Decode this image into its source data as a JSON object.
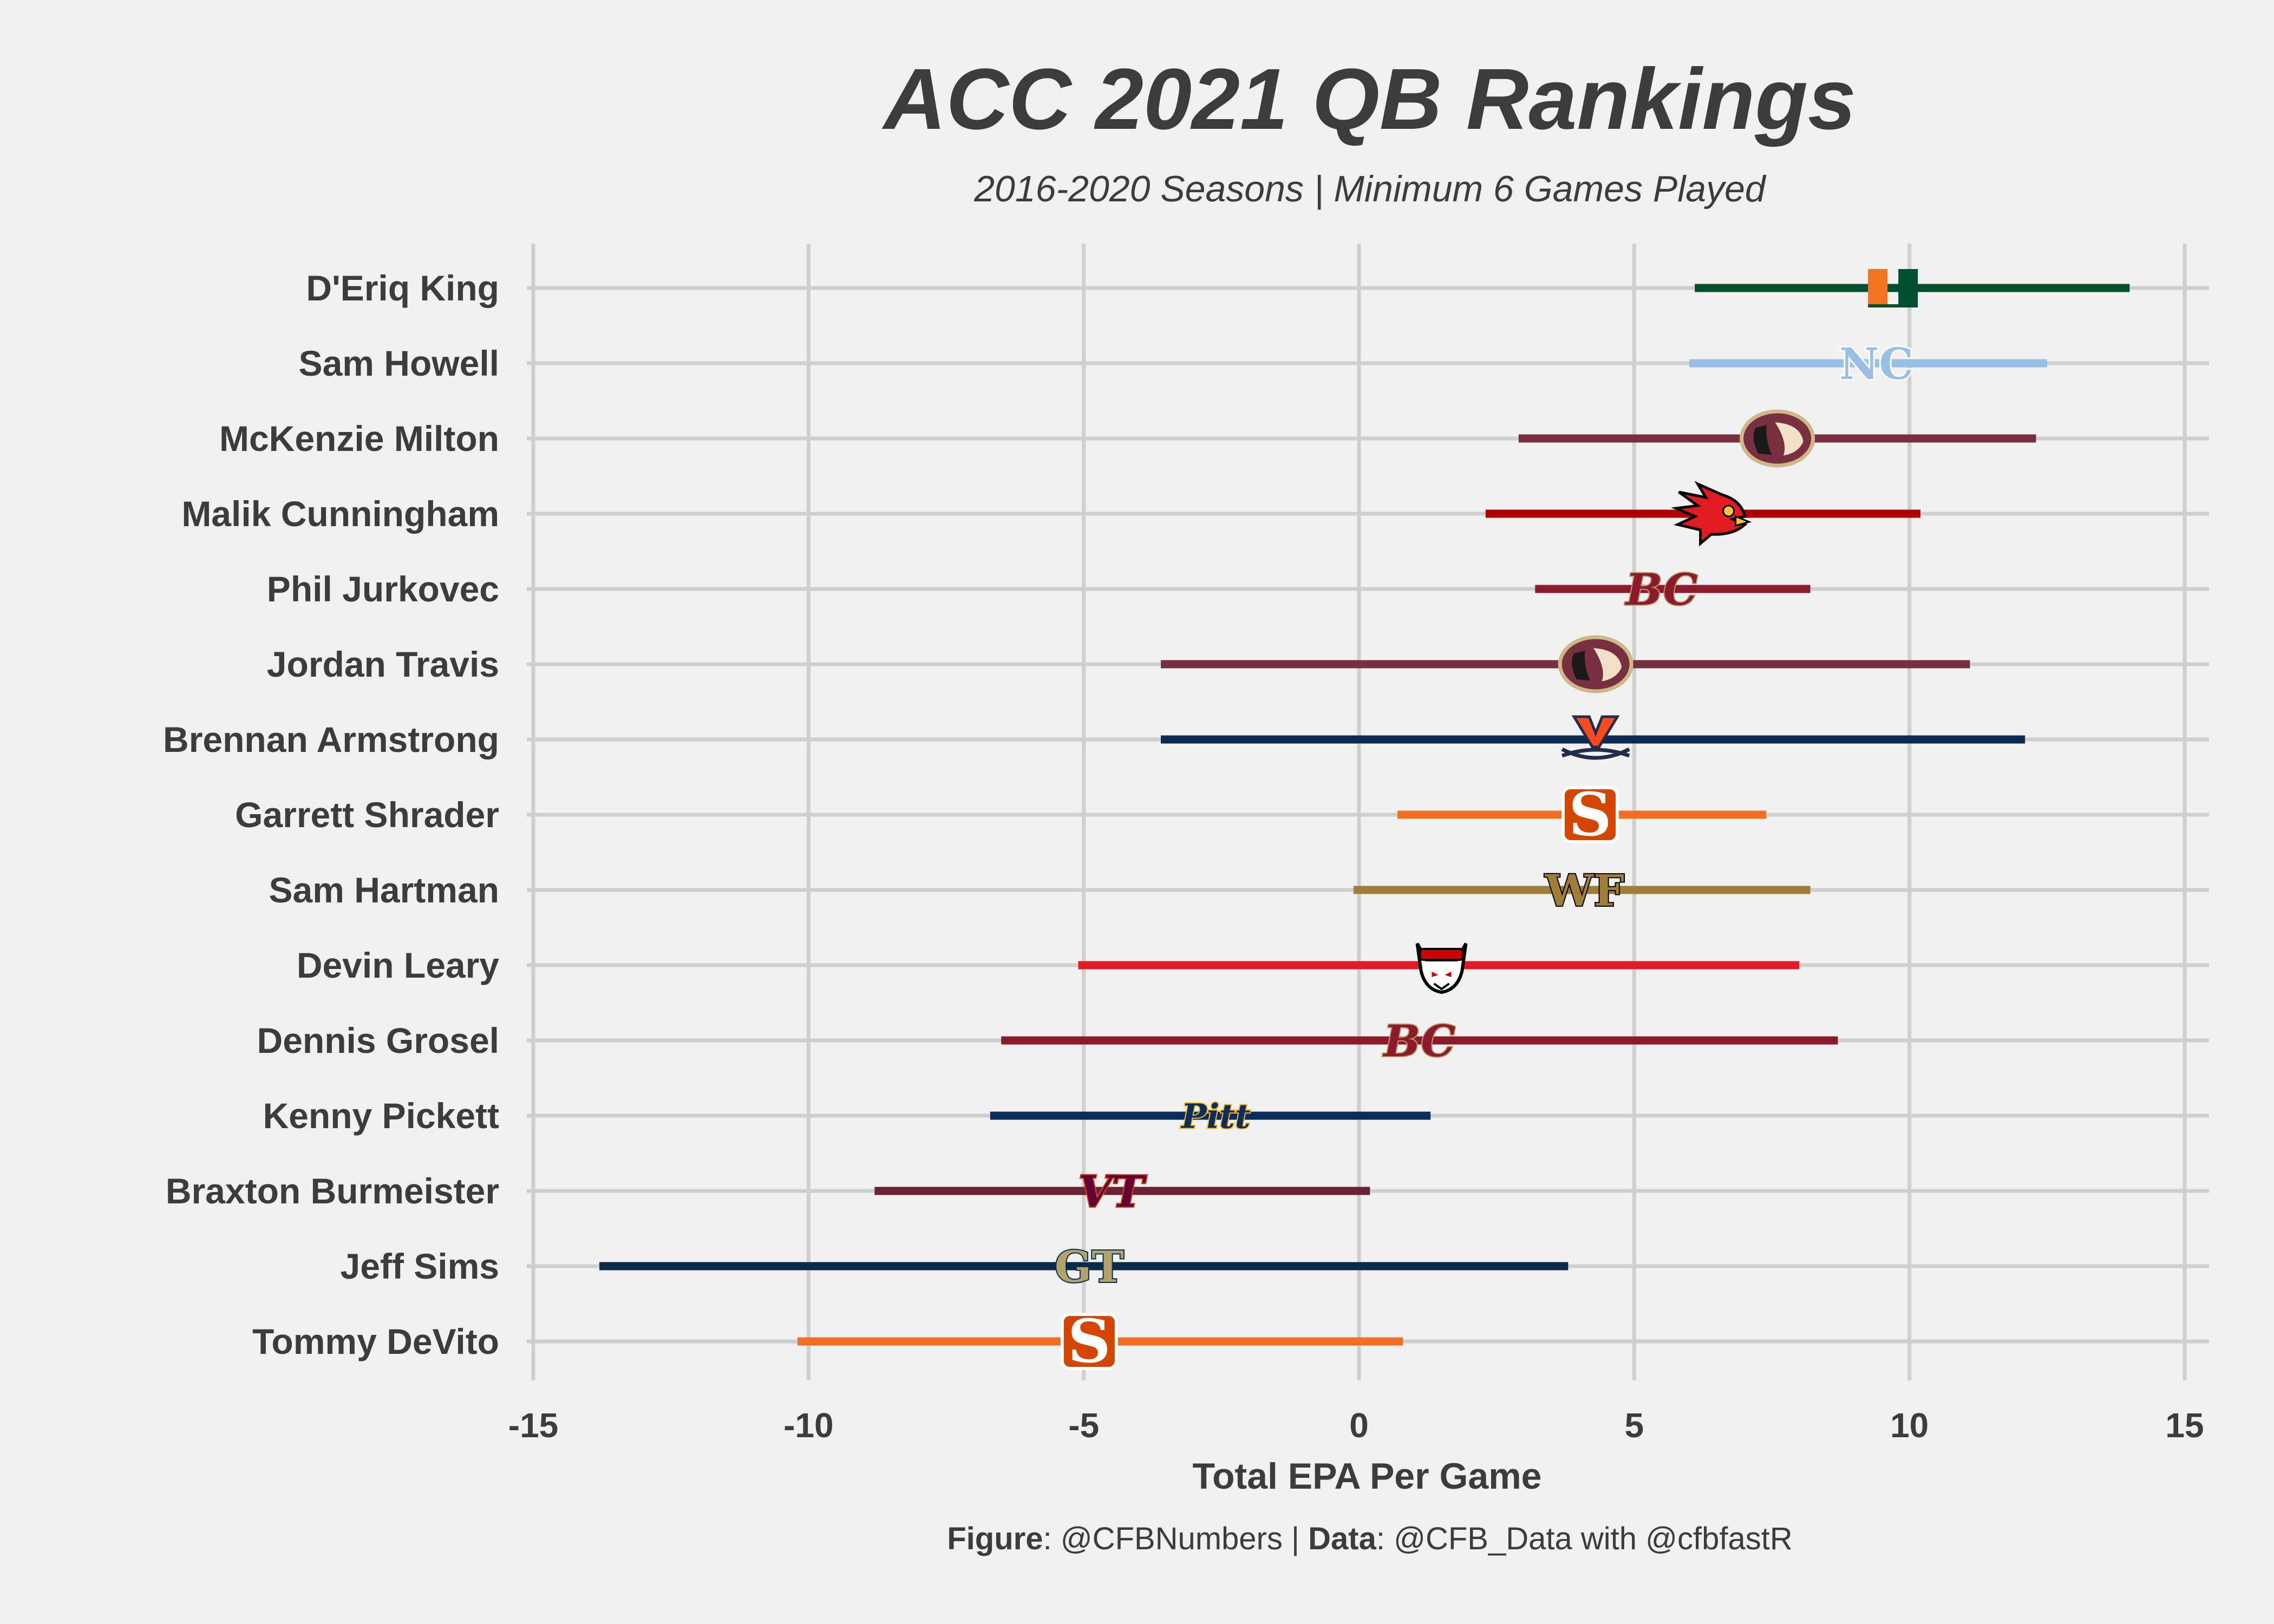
{
  "chart_data": {
    "type": "range",
    "title": "ACC 2021 QB Rankings",
    "subtitle": "2016-2020 Seasons | Minimum 6 Games Played",
    "xlabel": "Total EPA Per Game",
    "ylabel": "",
    "xlim": [
      -15,
      15
    ],
    "xticks": [
      -15,
      -10,
      -5,
      0,
      5,
      10,
      15
    ],
    "grid": true,
    "legend": "none",
    "caption": {
      "figure_label": "Figure",
      "figure_value": ": @CFBNumbers | ",
      "data_label": "Data",
      "data_value": ": @CFB_Data with @cfbfastR"
    },
    "players": [
      {
        "name": "D'Eriq King",
        "team": "Miami",
        "min": 6.1,
        "max": 14.0,
        "mean": 9.7,
        "color": "#005030",
        "logo": "miami-u-logo",
        "logo_text": "U",
        "logo_fill": "#f47321",
        "logo_stroke": "#005030"
      },
      {
        "name": "Sam Howell",
        "team": "North Carolina",
        "min": 6.0,
        "max": 12.5,
        "mean": 9.4,
        "color": "#99bfe5",
        "logo": "unc-nc-logo",
        "logo_text": "NC",
        "logo_fill": "#99bfe5",
        "logo_stroke": "#ffffff"
      },
      {
        "name": "McKenzie Milton",
        "team": "Florida State",
        "min": 2.9,
        "max": 12.3,
        "mean": 7.6,
        "color": "#782f40",
        "logo": "fsu-seminole-logo",
        "logo_text": "",
        "logo_fill": "#782f40",
        "logo_stroke": "#ceb888"
      },
      {
        "name": "Malik Cunningham",
        "team": "Louisville",
        "min": 2.3,
        "max": 10.2,
        "mean": 6.4,
        "color": "#ad0000",
        "logo": "louisville-cardinal-logo",
        "logo_text": "",
        "logo_fill": "#e21b23",
        "logo_stroke": "#000000"
      },
      {
        "name": "Phil Jurkovec",
        "team": "Boston College",
        "min": 3.2,
        "max": 8.2,
        "mean": 5.5,
        "color": "#8b1a2b",
        "logo": "bc-logo",
        "logo_text": "BC",
        "logo_fill": "#8b1a2b",
        "logo_stroke": "#bc9b6a"
      },
      {
        "name": "Jordan Travis",
        "team": "Florida State",
        "min": -3.6,
        "max": 11.1,
        "mean": 4.3,
        "color": "#782f40",
        "logo": "fsu-seminole-logo",
        "logo_text": "",
        "logo_fill": "#782f40",
        "logo_stroke": "#ceb888"
      },
      {
        "name": "Brennan Armstrong",
        "team": "Virginia",
        "min": -3.6,
        "max": 12.1,
        "mean": 4.3,
        "color": "#0d2b52",
        "logo": "virginia-v-sabres-logo",
        "logo_text": "V",
        "logo_fill": "#f84c1e",
        "logo_stroke": "#232d4b"
      },
      {
        "name": "Garrett Shrader",
        "team": "Syracuse",
        "min": 0.7,
        "max": 7.4,
        "mean": 4.2,
        "color": "#f26e21",
        "logo": "syracuse-s-logo",
        "logo_text": "S",
        "logo_fill": "#d44500",
        "logo_stroke": "#ffffff"
      },
      {
        "name": "Sam Hartman",
        "team": "Wake Forest",
        "min": -0.1,
        "max": 8.2,
        "mean": 4.1,
        "color": "#9e7e38",
        "logo": "wake-forest-wf-logo",
        "logo_text": "WF",
        "logo_fill": "#9e7e38",
        "logo_stroke": "#000000"
      },
      {
        "name": "Devin Leary",
        "team": "NC State",
        "min": -5.1,
        "max": 8.0,
        "mean": 1.5,
        "color": "#e01b25",
        "logo": "nc-state-wolf-logo",
        "logo_text": "",
        "logo_fill": "#cc0000",
        "logo_stroke": "#000000"
      },
      {
        "name": "Dennis Grosel",
        "team": "Boston College",
        "min": -6.5,
        "max": 8.7,
        "mean": 1.1,
        "color": "#8b1a2b",
        "logo": "bc-logo",
        "logo_text": "BC",
        "logo_fill": "#8b1a2b",
        "logo_stroke": "#bc9b6a"
      },
      {
        "name": "Kenny Pickett",
        "team": "Pittsburgh",
        "min": -6.7,
        "max": 1.3,
        "mean": -2.6,
        "color": "#0a2d5e",
        "logo": "pitt-script-logo",
        "logo_text": "Pitt",
        "logo_fill": "#0a2d5e",
        "logo_stroke": "#ffb81c"
      },
      {
        "name": "Braxton Burmeister",
        "team": "Virginia Tech",
        "min": -8.8,
        "max": 0.2,
        "mean": -4.5,
        "color": "#6a2234",
        "logo": "vt-logo",
        "logo_text": "VT",
        "logo_fill": "#630031",
        "logo_stroke": "#cf4420"
      },
      {
        "name": "Jeff Sims",
        "team": "Georgia Tech",
        "min": -13.8,
        "max": 3.8,
        "mean": -4.9,
        "color": "#0b2a4a",
        "logo": "gt-logo",
        "logo_text": "GT",
        "logo_fill": "#b3a369",
        "logo_stroke": "#003057"
      },
      {
        "name": "Tommy DeVito",
        "team": "Syracuse",
        "min": -10.2,
        "max": 0.8,
        "mean": -4.9,
        "color": "#f26e21",
        "logo": "syracuse-s-logo",
        "logo_text": "S",
        "logo_fill": "#d44500",
        "logo_stroke": "#ffffff"
      }
    ]
  }
}
